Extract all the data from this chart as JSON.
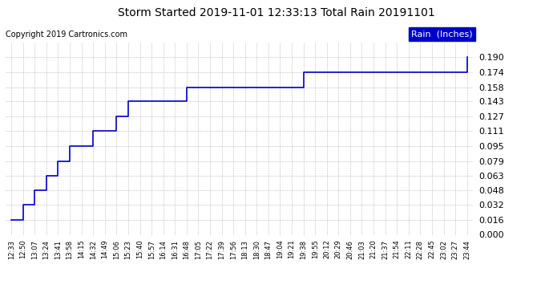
{
  "title": "Storm Started 2019-11-01 12:33:13 Total Rain 20191101",
  "copyright": "Copyright 2019 Cartronics.com",
  "legend_label": "Rain  (Inches)",
  "legend_bg": "#0000cc",
  "legend_text_color": "#ffffff",
  "line_color": "#0000cc",
  "background_color": "#ffffff",
  "plot_bg_color": "#ffffff",
  "grid_color": "#aaaaaa",
  "ylim": [
    0.0,
    0.2063
  ],
  "yticks": [
    0.0,
    0.016,
    0.032,
    0.048,
    0.063,
    0.079,
    0.095,
    0.111,
    0.127,
    0.143,
    0.158,
    0.174,
    0.19
  ],
  "x_labels": [
    "12:33",
    "12:50",
    "13:07",
    "13:24",
    "13:41",
    "13:58",
    "14:15",
    "14:32",
    "14:49",
    "15:06",
    "15:23",
    "15:40",
    "15:57",
    "16:14",
    "16:31",
    "16:48",
    "17:05",
    "17:22",
    "17:39",
    "17:56",
    "18:13",
    "18:30",
    "18:47",
    "19:04",
    "19:21",
    "19:38",
    "19:55",
    "20:12",
    "20:29",
    "20:46",
    "21:03",
    "21:20",
    "21:37",
    "21:54",
    "22:11",
    "22:28",
    "22:45",
    "23:02",
    "23:27",
    "23:44"
  ],
  "x_values": [
    0,
    1,
    2,
    3,
    4,
    5,
    6,
    7,
    8,
    9,
    10,
    11,
    12,
    13,
    14,
    15,
    16,
    17,
    18,
    19,
    20,
    21,
    22,
    23,
    24,
    25,
    26,
    27,
    28,
    29,
    30,
    31,
    32,
    33,
    34,
    35,
    36,
    37,
    38,
    39
  ],
  "y_values": [
    0.016,
    0.032,
    0.048,
    0.063,
    0.079,
    0.095,
    0.095,
    0.111,
    0.111,
    0.127,
    0.143,
    0.143,
    0.143,
    0.143,
    0.143,
    0.158,
    0.158,
    0.158,
    0.158,
    0.158,
    0.158,
    0.158,
    0.158,
    0.158,
    0.158,
    0.174,
    0.174,
    0.174,
    0.174,
    0.174,
    0.174,
    0.174,
    0.174,
    0.174,
    0.174,
    0.174,
    0.174,
    0.174,
    0.174,
    0.19
  ],
  "title_fontsize": 10,
  "copyright_fontsize": 7,
  "ytick_fontsize": 8,
  "xtick_fontsize": 6
}
